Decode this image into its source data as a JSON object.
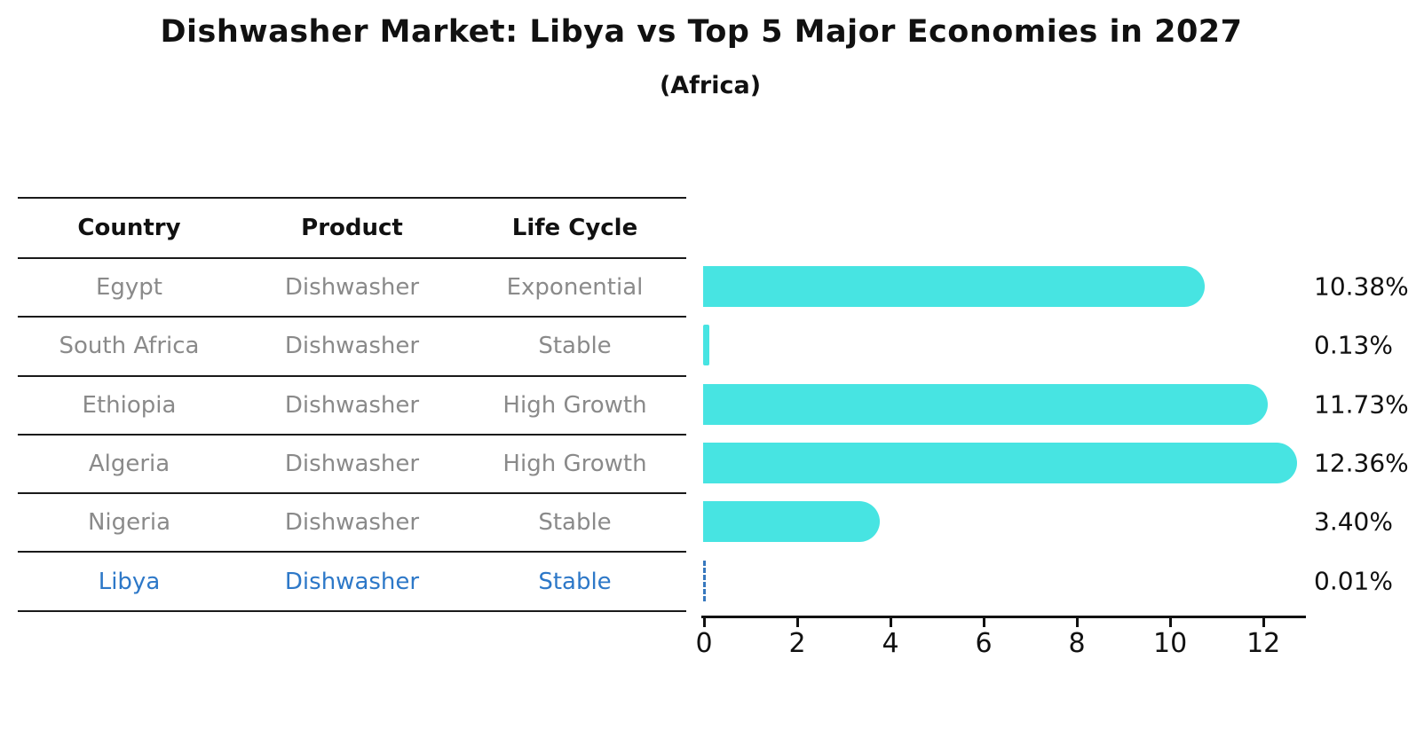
{
  "title": "Dishwasher Market: Libya vs Top 5 Major Economies in 2027",
  "subtitle": "(Africa)",
  "colors": {
    "bar": "#47e4e2",
    "highlight_text": "#2d78c8",
    "table_text": "#8a8a8a",
    "header_text": "#111111",
    "grid_line": "#1a1a1a"
  },
  "table": {
    "headers": [
      "Country",
      "Product",
      "Life Cycle"
    ],
    "rows": [
      {
        "country": "Egypt",
        "product": "Dishwasher",
        "life_cycle": "Exponential",
        "highlight": false
      },
      {
        "country": "South Africa",
        "product": "Dishwasher",
        "life_cycle": "Stable",
        "highlight": false
      },
      {
        "country": "Ethiopia",
        "product": "Dishwasher",
        "life_cycle": "High Growth",
        "highlight": false
      },
      {
        "country": "Algeria",
        "product": "Dishwasher",
        "life_cycle": "High Growth",
        "highlight": false
      },
      {
        "country": "Nigeria",
        "product": "Dishwasher",
        "life_cycle": "Stable",
        "highlight": false
      },
      {
        "country": "Libya",
        "product": "Dishwasher",
        "life_cycle": "Stable",
        "highlight": true
      }
    ]
  },
  "chart_data": {
    "type": "bar",
    "orientation": "horizontal",
    "title": "Dishwasher Market: Libya vs Top 5 Major Economies in 2027 (Africa)",
    "categories": [
      "Egypt",
      "South Africa",
      "Ethiopia",
      "Algeria",
      "Nigeria",
      "Libya"
    ],
    "values": [
      10.38,
      0.13,
      11.73,
      12.36,
      3.4,
      0.01
    ],
    "value_labels": [
      "10.38%",
      "0.13%",
      "11.73%",
      "12.36%",
      "3.40%",
      "0.01%"
    ],
    "unit": "%",
    "x_ticks": [
      0,
      2,
      4,
      6,
      8,
      10,
      12
    ],
    "x_tick_labels": [
      "0",
      "2",
      "4",
      "6",
      "8",
      "10",
      "12"
    ],
    "xlim": [
      0,
      12.93
    ],
    "grid": false,
    "legend": false,
    "highlight_category": "Libya"
  }
}
